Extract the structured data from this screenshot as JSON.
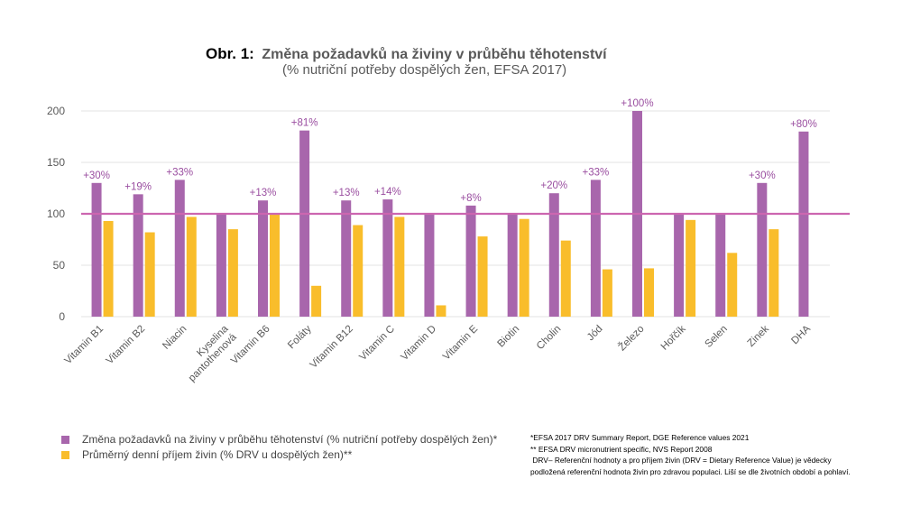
{
  "colors": {
    "change": "#a866ac",
    "intake": "#f9bd2b",
    "pct_label": "#9a4ea0",
    "reference_line": "#cc66b0",
    "grid": "#e3e3e3",
    "axis_text": "#595959"
  },
  "chart_data": {
    "type": "bar",
    "title_prefix": "Obr. 1:",
    "title": "Změna požadavků na živiny v průběhu těhotenství",
    "subtitle": "(% nutriční potřeby dospělých žen, EFSA 2017)",
    "categories": [
      "Vitamin B1",
      "Vitamin B2",
      "Niacin",
      "Kyselina\npantothenová",
      "Vitamin B6",
      "Foláty",
      "Vitamin B12",
      "Vitamin C",
      "Vitamin D",
      "Vitamin E",
      "Biotin",
      "Cholin",
      "Jód",
      "Železo",
      "Hořčík",
      "Selen",
      "Zinek",
      "DHA"
    ],
    "series": [
      {
        "name": "Změna požadavků na živiny v průběhu těhotenství (% nutriční potřeby dospělých žen)*",
        "values": [
          130,
          119,
          133,
          100,
          113,
          181,
          113,
          114,
          100,
          108,
          100,
          120,
          133,
          200,
          100,
          100,
          130,
          180
        ]
      },
      {
        "name": "Průměrný denní příjem živin (% DRV u dospělých žen)**",
        "values": [
          93,
          82,
          97,
          85,
          100,
          30,
          89,
          97,
          11,
          78,
          95,
          74,
          46,
          47,
          94,
          62,
          85,
          null
        ]
      }
    ],
    "data_labels": [
      "+30%",
      "+19%",
      "+33%",
      "",
      "+13%",
      "+81%",
      "+13%",
      "+14%",
      "",
      "+8%",
      "",
      "+20%",
      "+33%",
      "+100%",
      "",
      "",
      "+30%",
      "+80%"
    ],
    "yticks": [
      0,
      50,
      100,
      150,
      200
    ],
    "ylim": [
      0,
      200
    ],
    "reference_line": 100,
    "grid": true,
    "legend_position": "bottom-left"
  },
  "notes": [
    "*EFSA 2017 DRV Summary Report, DGE Reference values 2021",
    "** EFSA DRV micronutrient specific, NVS Report 2008",
    " DRV– Referenční hodnoty a pro příjem živin (DRV = Dietary Reference Value) je vědecky",
    "podložená referenční hodnota živin  pro zdravou populaci. Liší se dle životních období a pohlaví."
  ]
}
